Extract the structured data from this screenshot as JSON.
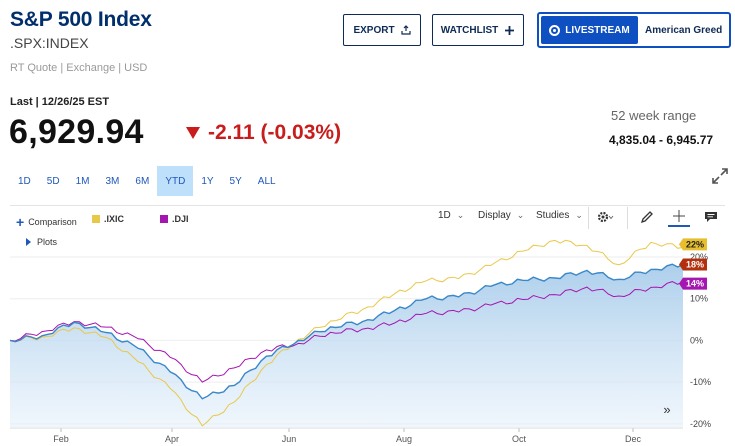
{
  "header": {
    "title": "S&P 500 Index",
    "symbol": ".SPX:INDEX",
    "meta": "RT Quote | Exchange | USD",
    "export_label": "EXPORT",
    "watchlist_label": "WATCHLIST",
    "livestream_label": "LIVESTREAM",
    "live_show": "American Greed"
  },
  "quote": {
    "last_label": "Last | 12/26/25 EST",
    "price": "6,929.94",
    "change": "-2.11 (-0.03%)",
    "range_label": "52 week range",
    "range_value": "4,835.04 - 6,945.77"
  },
  "periods": [
    {
      "label": "1D",
      "active": false
    },
    {
      "label": "5D",
      "active": false
    },
    {
      "label": "1M",
      "active": false
    },
    {
      "label": "3M",
      "active": false
    },
    {
      "label": "6M",
      "active": false
    },
    {
      "label": "YTD",
      "active": true
    },
    {
      "label": "1Y",
      "active": false
    },
    {
      "label": "5Y",
      "active": false
    },
    {
      "label": "ALL",
      "active": false
    }
  ],
  "toolbar": {
    "comparison_label": "Comparison",
    "plots_label": "Plots",
    "interval_label": "1D",
    "display_label": "Display",
    "studies_label": "Studies"
  },
  "colors": {
    "spx": "#3a87c8",
    "ixic": "#e8c84a",
    "dji": "#a515b0",
    "accent": "#0e4fc2",
    "down": "#c91c1c"
  },
  "chart_data": {
    "type": "line",
    "x_labels": [
      "Feb",
      "Apr",
      "Jun",
      "Aug",
      "Oct",
      "Dec"
    ],
    "y_ticks": [
      "20%",
      "10%",
      "0%",
      "-10%",
      "-20%"
    ],
    "ylim": [
      -21,
      26
    ],
    "series": [
      {
        "name": ".SPX",
        "end_label": "18%",
        "values": [
          0,
          1.5,
          3.8,
          2.2,
          -1.8,
          -8,
          -13.5,
          -11,
          -4,
          0.5,
          2.8,
          4.6,
          7.5,
          9.5,
          10.8,
          13,
          14,
          15.5,
          16.5,
          14.5,
          17.5,
          18.2
        ]
      },
      {
        "name": ".IXIC",
        "end_label": "22%",
        "values": [
          0,
          1.2,
          2.5,
          1,
          -5,
          -12,
          -20,
          -15,
          -6,
          0.8,
          4.2,
          7.5,
          11.5,
          13.8,
          15.2,
          18,
          21,
          24.5,
          22.5,
          18,
          24,
          22.3
        ]
      },
      {
        "name": ".DJI",
        "end_label": "14%",
        "values": [
          0,
          2.5,
          4,
          3.5,
          0.5,
          -4.5,
          -9.5,
          -6.8,
          -2.5,
          -0.2,
          1.5,
          2.8,
          4.5,
          6,
          7.2,
          8.5,
          9.4,
          11.5,
          12.5,
          10.5,
          13.2,
          14.1
        ]
      }
    ]
  }
}
